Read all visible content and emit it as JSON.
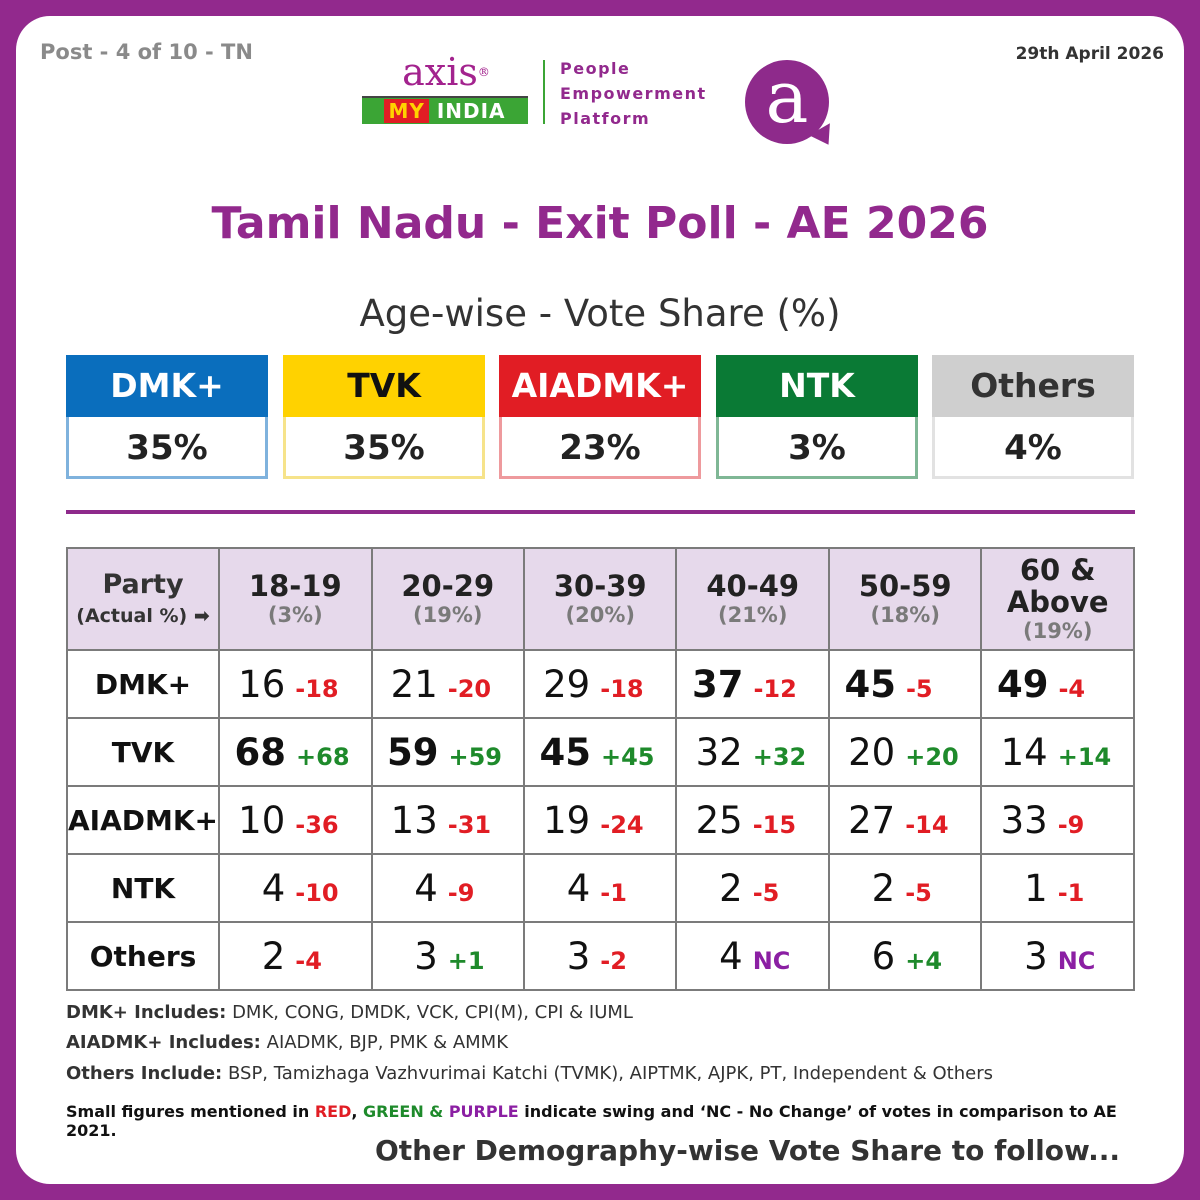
{
  "header": {
    "post_label": "Post - 4 of 10 - TN",
    "date": "29th April 2026"
  },
  "logo": {
    "brand": "axis",
    "registered": "®",
    "sub_my": "MY",
    "sub_india": "INDIA",
    "tagline": [
      "People",
      "Empowerment",
      "Platform"
    ],
    "badge_letter": "a"
  },
  "title": "Tamil Nadu - Exit Poll - AE 2026",
  "subtitle": "Age-wise - Vote Share (%)",
  "overall": [
    {
      "party": "DMK+",
      "value": "35%",
      "color": "#0a6ebd",
      "border": "#7fb2dd",
      "text_color": "#ffffff"
    },
    {
      "party": "TVK",
      "value": "35%",
      "color": "#ffd200",
      "border": "#f6e38a",
      "text_color": "#111111"
    },
    {
      "party": "AIADMK+",
      "value": "23%",
      "color": "#e11d24",
      "border": "#ee9a9d",
      "text_color": "#ffffff"
    },
    {
      "party": "NTK",
      "value": "3%",
      "color": "#0a7a35",
      "border": "#7fb795",
      "text_color": "#ffffff"
    },
    {
      "party": "Others",
      "value": "4%",
      "color": "#cfcfcf",
      "border": "#e2e2e2",
      "text_color": "#333333"
    }
  ],
  "table": {
    "party_header": "Party",
    "party_subheader": "(Actual %) ➡",
    "age_groups": [
      {
        "label": "18-19",
        "share": "(3%)"
      },
      {
        "label": "20-29",
        "share": "(19%)"
      },
      {
        "label": "30-39",
        "share": "(20%)"
      },
      {
        "label": "40-49",
        "share": "(21%)"
      },
      {
        "label": "50-59",
        "share": "(18%)"
      },
      {
        "label": "60 & Above",
        "share": "(19%)"
      }
    ],
    "rows": [
      {
        "party": "DMK+",
        "cells": [
          {
            "value": "16",
            "swing": "-18",
            "type": "neg",
            "bold": false
          },
          {
            "value": "21",
            "swing": "-20",
            "type": "neg",
            "bold": false
          },
          {
            "value": "29",
            "swing": "-18",
            "type": "neg",
            "bold": false
          },
          {
            "value": "37",
            "swing": "-12",
            "type": "neg",
            "bold": true
          },
          {
            "value": "45",
            "swing": "-5",
            "type": "neg",
            "bold": true
          },
          {
            "value": "49",
            "swing": "-4",
            "type": "neg",
            "bold": true
          }
        ]
      },
      {
        "party": "TVK",
        "cells": [
          {
            "value": "68",
            "swing": "+68",
            "type": "pos",
            "bold": true
          },
          {
            "value": "59",
            "swing": "+59",
            "type": "pos",
            "bold": true
          },
          {
            "value": "45",
            "swing": "+45",
            "type": "pos",
            "bold": true
          },
          {
            "value": "32",
            "swing": "+32",
            "type": "pos",
            "bold": false
          },
          {
            "value": "20",
            "swing": "+20",
            "type": "pos",
            "bold": false
          },
          {
            "value": "14",
            "swing": "+14",
            "type": "pos",
            "bold": false
          }
        ]
      },
      {
        "party": "AIADMK+",
        "cells": [
          {
            "value": "10",
            "swing": "-36",
            "type": "neg",
            "bold": false
          },
          {
            "value": "13",
            "swing": "-31",
            "type": "neg",
            "bold": false
          },
          {
            "value": "19",
            "swing": "-24",
            "type": "neg",
            "bold": false
          },
          {
            "value": "25",
            "swing": "-15",
            "type": "neg",
            "bold": false
          },
          {
            "value": "27",
            "swing": "-14",
            "type": "neg",
            "bold": false
          },
          {
            "value": "33",
            "swing": "-9",
            "type": "neg",
            "bold": false
          }
        ]
      },
      {
        "party": "NTK",
        "cells": [
          {
            "value": "4",
            "swing": "-10",
            "type": "neg",
            "bold": false
          },
          {
            "value": "4",
            "swing": "-9",
            "type": "neg",
            "bold": false
          },
          {
            "value": "4",
            "swing": "-1",
            "type": "neg",
            "bold": false
          },
          {
            "value": "2",
            "swing": "-5",
            "type": "neg",
            "bold": false
          },
          {
            "value": "2",
            "swing": "-5",
            "type": "neg",
            "bold": false
          },
          {
            "value": "1",
            "swing": "-1",
            "type": "neg",
            "bold": false
          }
        ]
      },
      {
        "party": "Others",
        "cells": [
          {
            "value": "2",
            "swing": "-4",
            "type": "neg",
            "bold": false
          },
          {
            "value": "3",
            "swing": "+1",
            "type": "pos",
            "bold": false
          },
          {
            "value": "3",
            "swing": "-2",
            "type": "neg",
            "bold": false
          },
          {
            "value": "4",
            "swing": "NC",
            "type": "nc",
            "bold": false
          },
          {
            "value": "6",
            "swing": "+4",
            "type": "pos",
            "bold": false
          },
          {
            "value": "3",
            "swing": "NC",
            "type": "nc",
            "bold": false
          }
        ]
      }
    ]
  },
  "notes": {
    "dmk_label": "DMK+ Includes:",
    "dmk_text": "DMK, CONG, DMDK, VCK, CPI(M), CPI & IUML",
    "aiadmk_label": "AIADMK+ Includes:",
    "aiadmk_text": "AIADMK, BJP, PMK & AMMK",
    "others_label": "Others Include:",
    "others_text": "BSP, Tamizhaga Vazhvurimai Katchi (TVMK), AIPTMK, AJPK, PT, Independent & Others"
  },
  "legend": {
    "prefix": "Small figures mentioned in",
    "red": "RED",
    "comma": ",",
    "green": "GREEN &",
    "purple": "PURPLE",
    "suffix": "indicate swing and ‘NC - No Change’ of votes in comparison to AE 2021.",
    "red_color": "#e11d24",
    "green_color": "#1e8a2b",
    "purple_color": "#8b1fa3"
  },
  "footer": "Other Demography-wise Vote Share to follow..."
}
